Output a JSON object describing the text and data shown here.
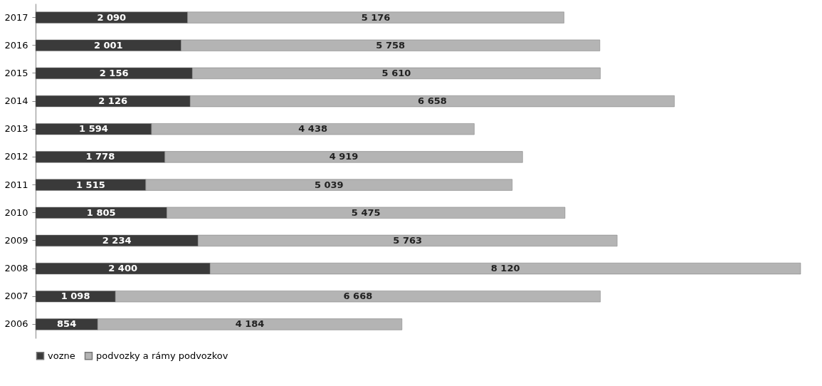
{
  "chart_data": {
    "type": "bar",
    "orientation": "horizontal",
    "stacked": true,
    "legend": "bottom",
    "grid": false,
    "categories": [
      "2017",
      "2016",
      "2015",
      "2014",
      "2013",
      "2012",
      "2011",
      "2010",
      "2009",
      "2008",
      "2007",
      "2006"
    ],
    "series": [
      {
        "name": "vozne",
        "color": "#3a3a3a",
        "values": [
          2090,
          2001,
          2156,
          2126,
          1594,
          1778,
          1515,
          1805,
          2234,
          2400,
          1098,
          854
        ],
        "value_labels": [
          "2 090",
          "2 001",
          "2 156",
          "2 126",
          "1 594",
          "1 778",
          "1 515",
          "1 805",
          "2 234",
          "2 400",
          "1 098",
          "854"
        ]
      },
      {
        "name": "podvozky a rámy podvozkov",
        "color": "#b4b4b4",
        "values": [
          5176,
          5758,
          5610,
          6658,
          4438,
          4919,
          5039,
          5475,
          5763,
          8120,
          6668,
          4184
        ],
        "value_labels": [
          "5 176",
          "5 758",
          "5 610",
          "6 658",
          "4 438",
          "4 919",
          "5 039",
          "5 475",
          "5 763",
          "8 120",
          "6 668",
          "4 184"
        ]
      }
    ]
  }
}
